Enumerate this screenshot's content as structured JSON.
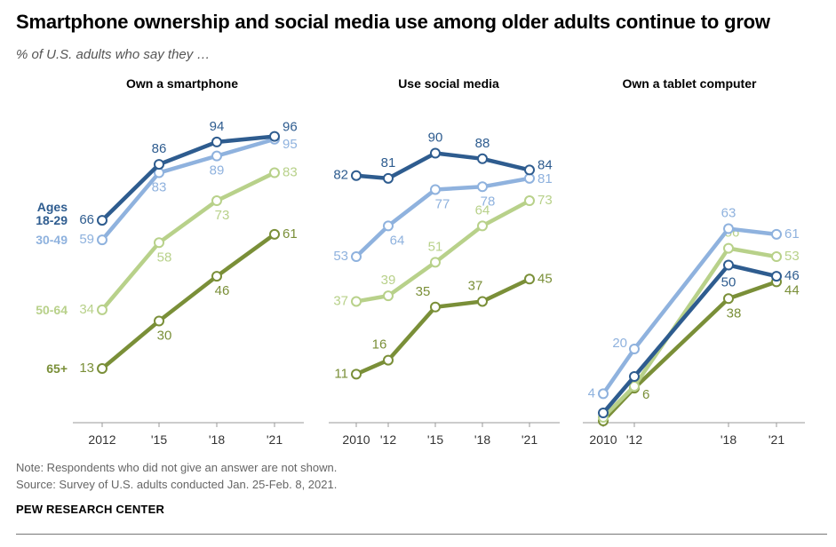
{
  "title": "Smartphone ownership and social media use among older adults continue to grow",
  "subtitle": "% of U.S. adults who say they …",
  "note": "Note: Respondents who did not give an answer are not shown.",
  "source": "Source: Survey of U.S. adults conducted Jan. 25-Feb. 8, 2021.",
  "org": "PEW RESEARCH CENTER",
  "legend_header": "Ages",
  "colors": {
    "18-29": "#2e5c8f",
    "30-49": "#8fb2de",
    "50-64": "#b8d18a",
    "65+": "#7a8f38",
    "axis": "#999999"
  },
  "chart_data": [
    {
      "type": "line",
      "title": "Own a smartphone",
      "x": [
        "2012",
        "'15",
        "'18",
        "'21"
      ],
      "ylim": [
        0,
        100
      ],
      "series": [
        {
          "name": "18-29",
          "values": [
            66,
            86,
            94,
            96
          ]
        },
        {
          "name": "30-49",
          "values": [
            59,
            83,
            89,
            95
          ]
        },
        {
          "name": "50-64",
          "values": [
            34,
            58,
            73,
            83
          ]
        },
        {
          "name": "65+",
          "values": [
            13,
            30,
            46,
            61
          ]
        }
      ]
    },
    {
      "type": "line",
      "title": "Use social media",
      "x": [
        "2010",
        "'12",
        "'15",
        "'18",
        "'21"
      ],
      "ylim": [
        0,
        100
      ],
      "series": [
        {
          "name": "18-29",
          "values": [
            82,
            81,
            90,
            88,
            84
          ]
        },
        {
          "name": "30-49",
          "values": [
            53,
            64,
            77,
            78,
            81
          ]
        },
        {
          "name": "50-64",
          "values": [
            37,
            39,
            51,
            64,
            73
          ]
        },
        {
          "name": "65+",
          "values": [
            11,
            16,
            35,
            37,
            45
          ]
        }
      ]
    },
    {
      "type": "line",
      "title": "Own a tablet computer",
      "x": [
        "2010",
        "'12",
        "'18",
        "'21"
      ],
      "ylim": [
        0,
        100
      ],
      "series": [
        {
          "name": "18-29",
          "values": [
            null,
            null,
            50,
            46
          ]
        },
        {
          "name": "30-49",
          "values": [
            4,
            20,
            63,
            61
          ]
        },
        {
          "name": "50-64",
          "values": [
            null,
            null,
            56,
            53
          ]
        },
        {
          "name": "65+",
          "values": [
            null,
            6,
            38,
            44
          ]
        }
      ]
    }
  ]
}
